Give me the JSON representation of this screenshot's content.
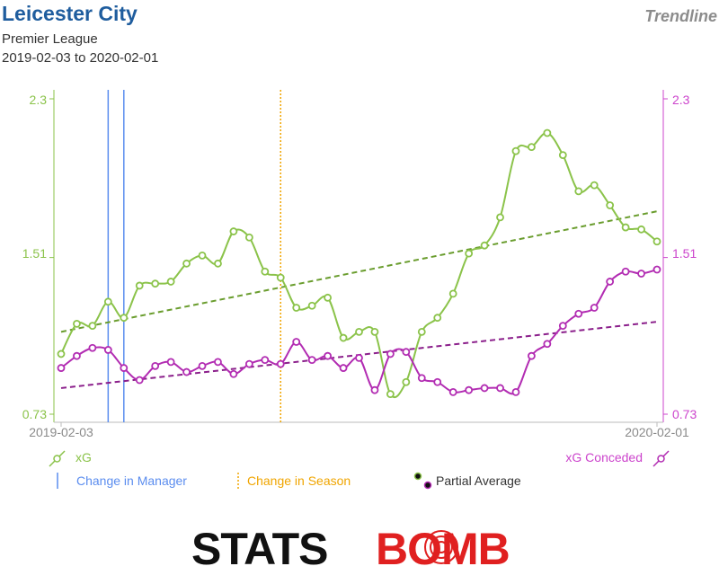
{
  "header": {
    "team": "Leicester City",
    "competition": "Premier League",
    "date_range": "2019-02-03 to 2020-02-01",
    "brand": "Trendline"
  },
  "colors": {
    "xg": "#8bc34a",
    "xg_trend": "#6a9d2e",
    "xg_conceded": "#b22cb2",
    "xg_conceded_trend": "#8b1f8b",
    "manager_change": "#5b8def",
    "season_change": "#f0a500",
    "axis_left": "#8bc34a",
    "axis_right": "#cc44cc"
  },
  "chart_data": {
    "type": "line",
    "title": "Leicester City",
    "ylim": [
      0.73,
      2.3
    ],
    "yticks": [
      0.73,
      1.51,
      2.3
    ],
    "x_start_label": "2019-02-03",
    "x_end_label": "2020-02-01",
    "series": [
      {
        "name": "xG",
        "axis": "left",
        "values": [
          1.03,
          1.18,
          1.17,
          1.29,
          1.21,
          1.37,
          1.38,
          1.39,
          1.48,
          1.52,
          1.48,
          1.64,
          1.61,
          1.44,
          1.41,
          1.26,
          1.27,
          1.31,
          1.11,
          1.14,
          1.14,
          0.83,
          0.89,
          1.14,
          1.21,
          1.33,
          1.53,
          1.57,
          1.71,
          2.04,
          2.06,
          2.13,
          2.02,
          1.84,
          1.87,
          1.77,
          1.66,
          1.65,
          1.59
        ]
      },
      {
        "name": "xG Conceded",
        "axis": "right",
        "values": [
          0.96,
          1.02,
          1.06,
          1.05,
          0.96,
          0.9,
          0.97,
          0.99,
          0.94,
          0.97,
          0.99,
          0.93,
          0.98,
          1.0,
          0.98,
          1.09,
          1.0,
          1.02,
          0.96,
          1.01,
          0.85,
          1.03,
          1.04,
          0.91,
          0.89,
          0.84,
          0.85,
          0.86,
          0.86,
          0.84,
          1.02,
          1.08,
          1.17,
          1.23,
          1.26,
          1.39,
          1.44,
          1.43,
          1.45
        ]
      }
    ],
    "trendlines": [
      {
        "name": "xG trend",
        "start": 1.14,
        "end": 1.74
      },
      {
        "name": "xG Conceded trend",
        "start": 0.86,
        "end": 1.19
      }
    ],
    "events": [
      {
        "type": "Change in Manager",
        "index": 3.0
      },
      {
        "type": "Change in Manager",
        "index": 4.0
      },
      {
        "type": "Change in Season",
        "index": 14.0
      }
    ],
    "grid": false,
    "legend_position": "bottom"
  },
  "legend": {
    "xg": "xG",
    "xg_conceded": "xG Conceded",
    "manager": "Change in Manager",
    "season": "Change in Season",
    "partial": "Partial Average"
  },
  "logo": {
    "part1": "STATS",
    "part2": "BOMB"
  }
}
